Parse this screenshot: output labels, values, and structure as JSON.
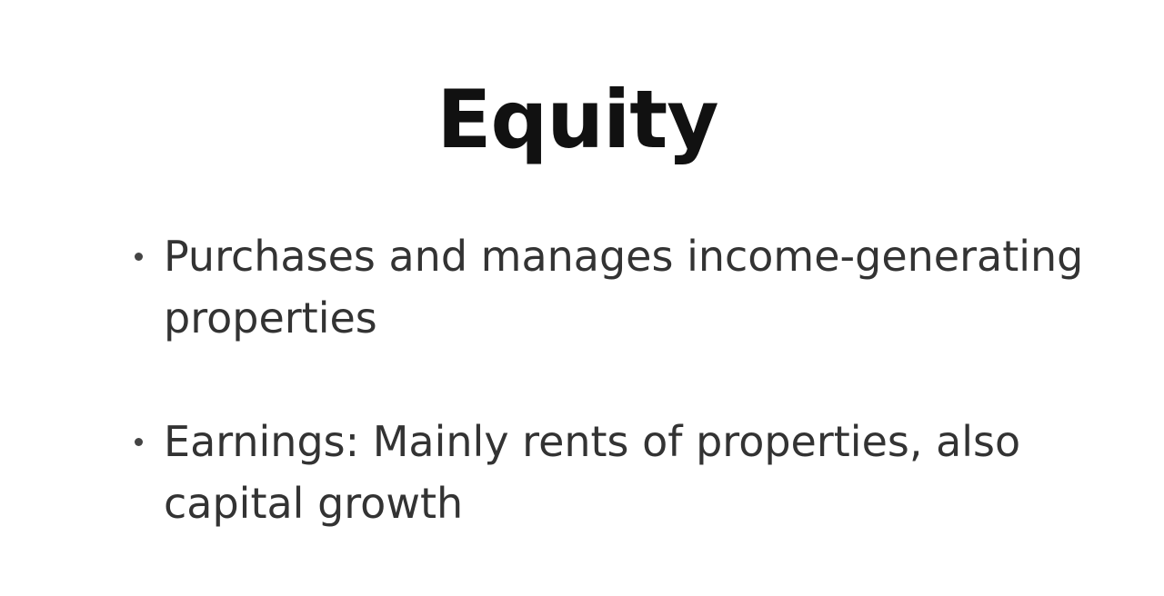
{
  "slide": {
    "title": "Equity",
    "bullets": [
      {
        "text": "Purchases and manages income-generating properties"
      },
      {
        "text": "Earnings: Mainly rents of properties, also capital growth"
      }
    ]
  }
}
